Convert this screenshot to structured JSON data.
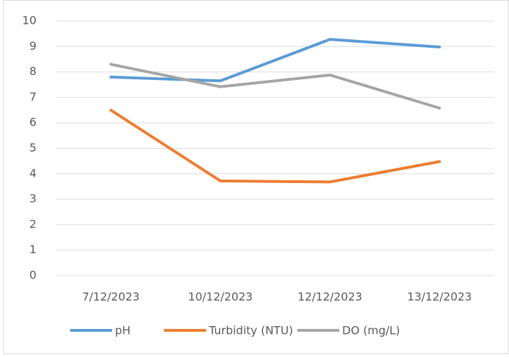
{
  "chart_data": {
    "type": "line",
    "categories": [
      "7/12/2023",
      "10/12/2023",
      "12/12/2023",
      "13/12/2023"
    ],
    "series": [
      {
        "name": "pH",
        "color": "#5b9bd5",
        "values": [
          7.8,
          7.65,
          9.28,
          8.98
        ]
      },
      {
        "name": "Turbidity (NTU)",
        "color": "#ed7d31",
        "values": [
          6.5,
          3.72,
          3.68,
          4.48
        ]
      },
      {
        "name": "DO (mg/L)",
        "color": "#a5a5a5",
        "values": [
          8.3,
          7.42,
          7.88,
          6.58
        ]
      }
    ],
    "ylim": [
      0,
      10
    ],
    "yticks": [
      0,
      1,
      2,
      3,
      4,
      5,
      6,
      7,
      8,
      9,
      10
    ],
    "grid": true,
    "legend": "bottom"
  }
}
